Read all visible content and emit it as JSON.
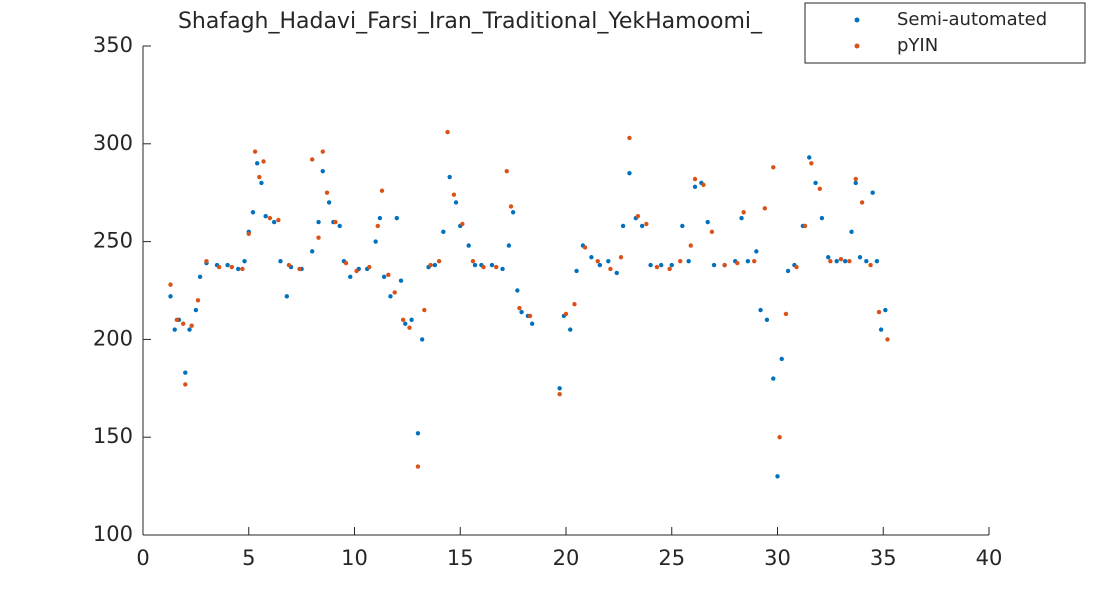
{
  "chart_data": {
    "type": "scatter",
    "title": "Shafagh_Hadavi_Farsi_Iran_Traditional_YekHamoomi_",
    "xlim": [
      0,
      40
    ],
    "xticks": [
      0,
      5,
      10,
      15,
      20,
      25,
      30,
      35,
      40
    ],
    "ylim": [
      100,
      350
    ],
    "yticks": [
      100,
      150,
      200,
      250,
      300,
      350
    ],
    "legend": "top-right",
    "series": [
      {
        "name": "Semi-automated",
        "color": "#0072BD",
        "x": [
          1.3,
          1.5,
          1.7,
          2.0,
          2.2,
          2.5,
          2.7,
          3.0,
          3.5,
          4.0,
          4.5,
          4.8,
          5.0,
          5.2,
          5.4,
          5.6,
          5.8,
          6.2,
          6.5,
          6.8,
          7.0,
          7.5,
          8.0,
          8.3,
          8.5,
          8.8,
          9.0,
          9.3,
          9.5,
          9.8,
          10.2,
          10.6,
          11.0,
          11.2,
          11.4,
          11.7,
          12.0,
          12.2,
          12.4,
          12.7,
          13.0,
          13.2,
          13.5,
          13.8,
          14.2,
          14.5,
          14.8,
          15.0,
          15.4,
          15.7,
          16.0,
          16.5,
          17.0,
          17.3,
          17.5,
          17.7,
          17.9,
          18.2,
          18.4,
          19.7,
          19.9,
          20.2,
          20.5,
          20.8,
          21.2,
          21.6,
          22.0,
          22.4,
          22.7,
          23.0,
          23.3,
          23.6,
          24.0,
          24.5,
          25.0,
          25.5,
          25.8,
          26.1,
          26.4,
          26.7,
          27.0,
          27.5,
          28.0,
          28.3,
          28.6,
          29.0,
          29.2,
          29.5,
          29.8,
          30.0,
          30.2,
          30.5,
          30.8,
          31.2,
          31.5,
          31.8,
          32.1,
          32.4,
          32.8,
          33.2,
          33.5,
          33.7,
          33.9,
          34.2,
          34.5,
          34.7,
          34.9,
          35.1
        ],
        "values": [
          222,
          205,
          210,
          183,
          205,
          215,
          232,
          239,
          238,
          238,
          236,
          240,
          255,
          265,
          290,
          280,
          263,
          260,
          240,
          222,
          237,
          236,
          245,
          260,
          286,
          270,
          260,
          258,
          240,
          232,
          236,
          236,
          250,
          262,
          232,
          222,
          262,
          230,
          208,
          210,
          152,
          200,
          237,
          238,
          255,
          283,
          270,
          258,
          248,
          238,
          238,
          238,
          236,
          248,
          265,
          225,
          214,
          212,
          208,
          175,
          212,
          205,
          235,
          248,
          242,
          238,
          240,
          234,
          258,
          285,
          262,
          258,
          238,
          238,
          238,
          258,
          240,
          278,
          280,
          260,
          238,
          238,
          240,
          262,
          240,
          245,
          215,
          210,
          180,
          130,
          190,
          235,
          238,
          258,
          293,
          280,
          262,
          242,
          240,
          240,
          255,
          280,
          242,
          240,
          275,
          240,
          205,
          215
        ]
      },
      {
        "name": "pYIN",
        "color": "#D95319",
        "x": [
          1.3,
          1.6,
          1.9,
          2.0,
          2.3,
          2.6,
          3.0,
          3.6,
          4.2,
          4.7,
          5.0,
          5.3,
          5.5,
          5.7,
          6.0,
          6.4,
          6.9,
          7.4,
          8.0,
          8.3,
          8.5,
          8.7,
          9.1,
          9.6,
          10.1,
          10.7,
          11.1,
          11.3,
          11.6,
          11.9,
          12.3,
          12.6,
          13.0,
          13.3,
          13.6,
          14.0,
          14.4,
          14.7,
          15.1,
          15.6,
          16.1,
          16.7,
          17.2,
          17.4,
          17.8,
          18.3,
          19.7,
          20.0,
          20.4,
          20.9,
          21.5,
          22.1,
          22.6,
          23.0,
          23.4,
          23.8,
          24.3,
          24.9,
          25.4,
          25.9,
          26.1,
          26.5,
          26.9,
          27.5,
          28.1,
          28.4,
          28.9,
          29.4,
          29.8,
          30.1,
          30.4,
          30.9,
          31.3,
          31.6,
          32.0,
          32.5,
          33.0,
          33.4,
          33.7,
          34.0,
          34.4,
          34.8,
          35.2
        ],
        "values": [
          228,
          210,
          208,
          177,
          207,
          220,
          240,
          237,
          237,
          236,
          254,
          296,
          283,
          291,
          262,
          261,
          238,
          236,
          292,
          252,
          296,
          275,
          260,
          239,
          235,
          237,
          258,
          276,
          233,
          224,
          210,
          206,
          135,
          215,
          238,
          240,
          306,
          274,
          259,
          240,
          237,
          237,
          286,
          268,
          216,
          212,
          172,
          213,
          218,
          247,
          240,
          236,
          242,
          303,
          263,
          259,
          237,
          236,
          240,
          248,
          282,
          279,
          255,
          238,
          239,
          265,
          240,
          267,
          288,
          150,
          213,
          237,
          258,
          290,
          277,
          240,
          241,
          240,
          282,
          270,
          238,
          214,
          200
        ]
      }
    ]
  }
}
